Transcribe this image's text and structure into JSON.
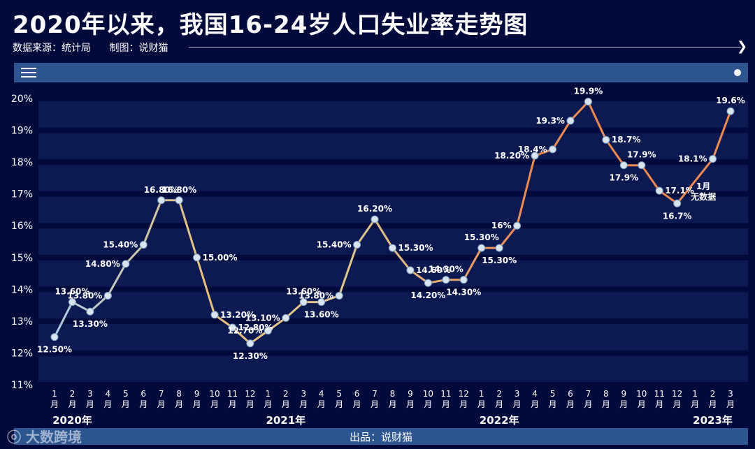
{
  "header": {
    "title": "2020年以来，我国16-24岁人口失业率走势图",
    "source": "数据来源：统计局",
    "maker": "制图：说财猫"
  },
  "footer": {
    "producer": "出品：说财猫",
    "watermark": "大数跨境"
  },
  "colors": {
    "background": "#020a3c",
    "bar": "#2d5690",
    "band": "#0d1a52",
    "line_start": "#a9cfe4",
    "line_mid": "#e8c07c",
    "line_end": "#ef8a50"
  },
  "chart_data": {
    "type": "line",
    "title": "",
    "xlabel": "",
    "ylabel": "",
    "ylim": [
      11,
      20
    ],
    "yticks": [
      "11%",
      "12%",
      "13%",
      "14%",
      "15%",
      "16%",
      "17%",
      "18%",
      "19%",
      "20%"
    ],
    "grid": "horizontal bands",
    "categories": [
      "1月",
      "2月",
      "3月",
      "4月",
      "5月",
      "6月",
      "7月",
      "8月",
      "9月",
      "10月",
      "11月",
      "12月",
      "1月",
      "2月",
      "3月",
      "4月",
      "5月",
      "6月",
      "7月",
      "8月",
      "9月",
      "10月",
      "11月",
      "12月",
      "1月",
      "2月",
      "3月",
      "4月",
      "5月",
      "6月",
      "7月",
      "8月",
      "9月",
      "10月",
      "11月",
      "12月",
      "1月",
      "2月",
      "3月"
    ],
    "year_labels": [
      {
        "label": "2020年",
        "index": 1
      },
      {
        "label": "2021年",
        "index": 13
      },
      {
        "label": "2022年",
        "index": 25
      },
      {
        "label": "2023年",
        "index": 37
      }
    ],
    "series": [
      {
        "values": [
          12.5,
          13.6,
          13.3,
          13.8,
          14.8,
          15.4,
          16.8,
          16.8,
          15.0,
          13.2,
          12.8,
          12.3,
          12.7,
          13.1,
          13.6,
          13.6,
          13.8,
          15.4,
          16.2,
          15.3,
          14.6,
          14.2,
          14.3,
          14.3,
          15.3,
          15.3,
          16.0,
          18.2,
          18.4,
          19.3,
          19.9,
          18.7,
          17.9,
          17.9,
          17.1,
          16.7,
          null,
          18.1,
          19.6
        ],
        "data_labels": [
          "12.50%",
          "13.60%",
          "13.30%",
          "13.80%",
          "14.80%",
          "15.40%",
          "16.80%",
          "16.80%",
          "15.00%",
          "13.20%",
          "12.80%",
          "12.30%",
          "12.70%",
          "13.10%",
          "13.60%",
          "13.60%",
          "13.80%",
          "15.40%",
          "16.20%",
          "15.30%",
          "14.60%",
          "14.20%",
          "14.30%",
          "14.30%",
          "15.30%",
          "15.30%",
          "16%",
          "18.20%",
          "18.4%",
          "19.3%",
          "19.9%",
          "18.7%",
          "17.9%",
          "17.9%",
          "17.1%",
          "16.7%",
          "",
          "18.1%",
          "19.6%"
        ]
      }
    ],
    "annotations": [
      {
        "text": "1月",
        "index": 36
      },
      {
        "text": "无数据",
        "index": 36
      }
    ]
  }
}
